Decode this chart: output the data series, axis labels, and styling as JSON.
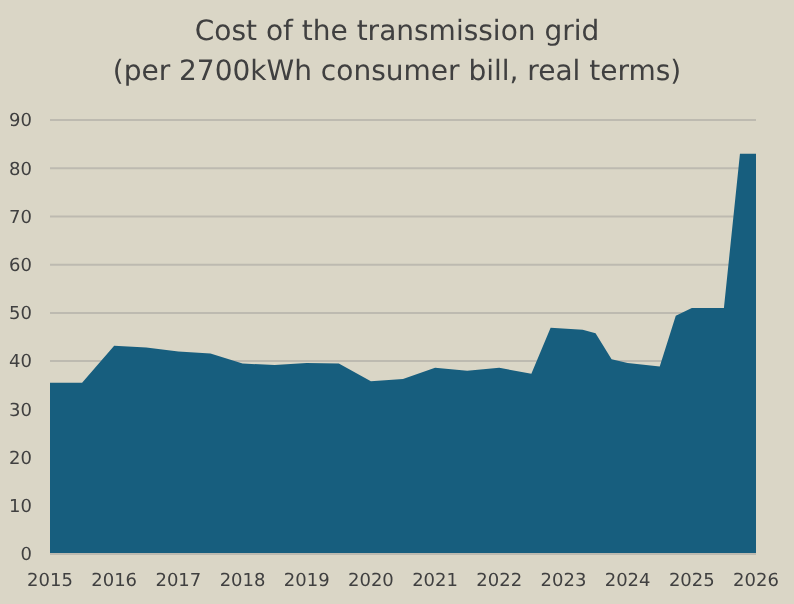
{
  "chart_data": {
    "type": "area",
    "title": "Cost of the transmission grid",
    "subtitle": "(per 2700kWh consumer bill, real terms)",
    "x": [
      2015,
      2015.5,
      2016,
      2016.5,
      2017,
      2017.5,
      2018,
      2018.5,
      2019,
      2019.5,
      2020,
      2020.5,
      2021,
      2021.5,
      2022,
      2022.5,
      2022.8,
      2023.3,
      2023.5,
      2023.75,
      2024,
      2024.5,
      2024.75,
      2025,
      2025.5,
      2025.75,
      2026
    ],
    "series": [
      {
        "color": "#175e7e",
        "values": [
          35.5,
          35.5,
          43.2,
          42.8,
          42,
          41.6,
          39.5,
          39.2,
          39.6,
          39.5,
          35.8,
          36.3,
          38.6,
          38,
          38.6,
          37.4,
          46.9,
          46.5,
          45.8,
          40.4,
          39.6,
          38.9,
          49.4,
          51,
          51,
          83,
          83
        ]
      }
    ],
    "xlim": [
      2015,
      2026
    ],
    "xticks": [
      2015,
      2016,
      2017,
      2018,
      2019,
      2020,
      2021,
      2022,
      2023,
      2024,
      2025,
      2026
    ],
    "ylim": [
      0,
      90
    ],
    "yticks": [
      0,
      10,
      20,
      30,
      40,
      50,
      60,
      70,
      80,
      90
    ],
    "grid": "y"
  }
}
